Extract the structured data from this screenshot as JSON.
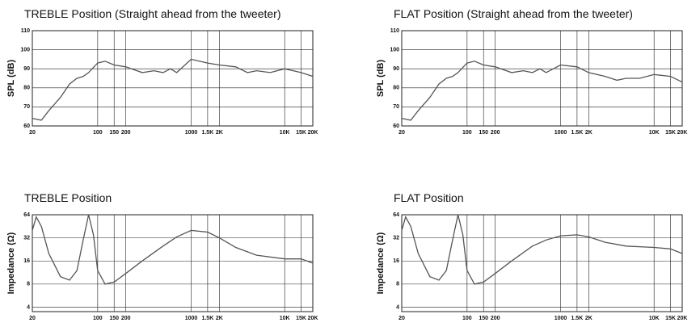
{
  "chart_data": [
    {
      "type": "line",
      "title": "TREBLE Position (Straight ahead from the tweeter)",
      "ylabel": "SPL (dB)",
      "x": [
        20,
        25,
        30,
        40,
        50,
        60,
        70,
        80,
        100,
        120,
        150,
        200,
        300,
        400,
        500,
        600,
        700,
        1000,
        1500,
        2000,
        3000,
        4000,
        5000,
        7000,
        10000,
        15000,
        20000
      ],
      "series": [
        {
          "color": "#555555",
          "values": [
            64,
            63,
            68,
            75,
            82,
            85,
            86,
            88,
            93,
            94,
            92,
            91,
            88,
            89,
            88,
            90,
            88,
            95,
            93,
            92,
            91,
            88,
            89,
            88,
            90,
            88,
            86
          ]
        }
      ],
      "xlim": [
        20,
        20000
      ],
      "xticks": [
        20,
        100,
        150,
        200,
        1000,
        {
          "value": 1500,
          "label": "1.5K"
        },
        {
          "value": 2000,
          "label": "2K"
        },
        {
          "value": 10000,
          "label": "10K"
        },
        {
          "value": 15000,
          "label": "15K"
        },
        {
          "value": 20000,
          "label": "20K"
        }
      ],
      "ylim": [
        60,
        110
      ],
      "yticks": [
        60,
        70,
        80,
        90,
        100,
        110
      ],
      "log_x": true,
      "log_y": false,
      "grid": true
    },
    {
      "type": "line",
      "title": "FLAT Position (Straight ahead from the tweeter)",
      "ylabel": "SPL (dB)",
      "x": [
        20,
        25,
        30,
        40,
        50,
        60,
        70,
        80,
        100,
        120,
        150,
        200,
        300,
        400,
        500,
        600,
        700,
        1000,
        1500,
        2000,
        3000,
        4000,
        5000,
        7000,
        10000,
        15000,
        20000
      ],
      "series": [
        {
          "color": "#555555",
          "values": [
            64,
            63,
            68,
            75,
            82,
            85,
            86,
            88,
            93,
            94,
            92,
            91,
            88,
            89,
            88,
            90,
            88,
            92,
            91,
            88,
            86,
            84,
            85,
            85,
            87,
            86,
            83
          ]
        }
      ],
      "xlim": [
        20,
        20000
      ],
      "xticks": [
        20,
        100,
        150,
        200,
        1000,
        {
          "value": 1500,
          "label": "1.5K"
        },
        {
          "value": 2000,
          "label": "2K"
        },
        {
          "value": 10000,
          "label": "10K"
        },
        {
          "value": 15000,
          "label": "15K"
        },
        {
          "value": 20000,
          "label": "20K"
        }
      ],
      "ylim": [
        60,
        110
      ],
      "yticks": [
        60,
        70,
        80,
        90,
        100,
        110
      ],
      "log_x": true,
      "log_y": false,
      "grid": true
    },
    {
      "type": "line",
      "title": "TREBLE Position",
      "ylabel": "Impedance (Ω)",
      "x": [
        20,
        22,
        25,
        30,
        40,
        50,
        60,
        70,
        80,
        90,
        100,
        120,
        150,
        200,
        300,
        500,
        700,
        1000,
        1500,
        2000,
        3000,
        5000,
        10000,
        15000,
        20000
      ],
      "series": [
        {
          "color": "#555555",
          "values": [
            40,
            60,
            45,
            20,
            10,
            9,
            12,
            30,
            64,
            35,
            12,
            8,
            8.5,
            11,
            16,
            25,
            33,
            40,
            38,
            32,
            24,
            19,
            17,
            17,
            15
          ]
        }
      ],
      "xlim": [
        20,
        20000
      ],
      "xticks": [
        20,
        100,
        150,
        200,
        1000,
        {
          "value": 1500,
          "label": "1.5K"
        },
        {
          "value": 2000,
          "label": "2K"
        },
        {
          "value": 10000,
          "label": "10K"
        },
        {
          "value": 15000,
          "label": "15K"
        },
        {
          "value": 20000,
          "label": "20K"
        }
      ],
      "ylim": [
        3.5,
        64
      ],
      "yticks": [
        4,
        8,
        16,
        32,
        64
      ],
      "log_x": true,
      "log_y": true,
      "grid": true
    },
    {
      "type": "line",
      "title": "FLAT Position",
      "ylabel": "Impedance (Ω)",
      "x": [
        20,
        22,
        25,
        30,
        40,
        50,
        60,
        70,
        80,
        90,
        100,
        120,
        150,
        200,
        300,
        500,
        700,
        1000,
        1500,
        2000,
        3000,
        5000,
        10000,
        15000,
        20000
      ],
      "series": [
        {
          "color": "#555555",
          "values": [
            40,
            60,
            45,
            20,
            10,
            9,
            12,
            30,
            64,
            35,
            12,
            8,
            8.5,
            11,
            16,
            25,
            30,
            34,
            35,
            33,
            28,
            25,
            24,
            23,
            20
          ]
        }
      ],
      "xlim": [
        20,
        20000
      ],
      "xticks": [
        20,
        100,
        150,
        200,
        1000,
        {
          "value": 1500,
          "label": "1.5K"
        },
        {
          "value": 2000,
          "label": "2K"
        },
        {
          "value": 10000,
          "label": "10K"
        },
        {
          "value": 15000,
          "label": "15K"
        },
        {
          "value": 20000,
          "label": "20K"
        }
      ],
      "ylim": [
        3.5,
        64
      ],
      "yticks": [
        4,
        8,
        16,
        32,
        64
      ],
      "log_x": true,
      "log_y": true,
      "grid": true
    }
  ]
}
